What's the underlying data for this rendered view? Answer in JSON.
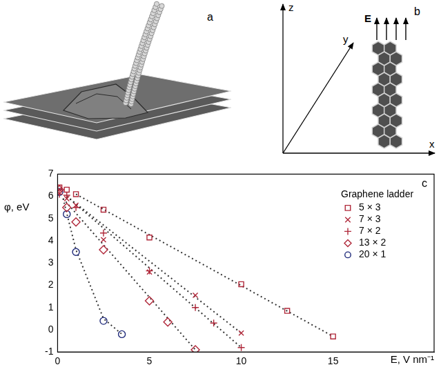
{
  "diagram_a": {
    "panel_label": "a"
  },
  "diagram_b": {
    "panel_label": "b",
    "axis_labels": [
      "x",
      "y",
      "z"
    ],
    "field_label": "E"
  },
  "chart_data": {
    "type": "scatter",
    "panel_label": "c",
    "x_label": "E, V nm⁻¹",
    "y_label": "φ, eV",
    "xlim": [
      0,
      20.5
    ],
    "xticks": [
      0,
      5,
      10,
      15
    ],
    "ylim": [
      -1,
      7
    ],
    "yticks": [
      -1,
      0,
      1,
      2,
      3,
      4,
      5,
      6,
      7
    ],
    "grid": false,
    "legend": "upper right",
    "legend_title": "Graphene ladder",
    "series": [
      {
        "name": "5 × 3",
        "color": "#b0283a",
        "marker": "square",
        "line_style": "dotted",
        "x": [
          0.1,
          0.5,
          1,
          2.5,
          5,
          10,
          12.5,
          15
        ],
        "values": [
          6.4,
          6.3,
          6.1,
          5.4,
          4.15,
          2.05,
          0.85,
          -0.3
        ],
        "fit": {
          "x": [
            1,
            15
          ],
          "values": [
            6.1,
            -0.3
          ]
        }
      },
      {
        "name": "7 × 3",
        "color": "#b0283a",
        "marker": "x",
        "line_style": "dotted",
        "x": [
          0.1,
          0.5,
          1,
          2.5,
          5,
          7.5,
          10
        ],
        "values": [
          6.3,
          5.9,
          5.6,
          4.05,
          2.6,
          1.55,
          -0.15
        ],
        "fit": {
          "x": [
            0.5,
            10
          ],
          "values": [
            6.0,
            -0.15
          ]
        }
      },
      {
        "name": "7 × 2",
        "color": "#b0283a",
        "marker": "plus",
        "line_style": "dotted",
        "x": [
          0.1,
          0.5,
          1,
          2.5,
          5,
          7.5,
          8.5,
          10
        ],
        "values": [
          6.1,
          6.05,
          5.5,
          4.35,
          2.65,
          1.0,
          0.3,
          -0.8
        ],
        "fit": {
          "x": [
            0.5,
            10
          ],
          "values": [
            6.0,
            -0.8
          ]
        }
      },
      {
        "name": "13 × 2",
        "color": "#b0283a",
        "marker": "diamond",
        "line_style": "dotted",
        "x": [
          0.1,
          0.5,
          1,
          2.5,
          5,
          6,
          7.5
        ],
        "values": [
          6.3,
          5.5,
          4.85,
          3.6,
          1.3,
          0.35,
          -0.9
        ],
        "fit": {
          "x": [
            0.3,
            7.5
          ],
          "values": [
            5.9,
            -0.9
          ]
        }
      },
      {
        "name": "20 × 1",
        "color": "#1f2a7a",
        "marker": "circle",
        "line_style": "dotted",
        "x": [
          0.1,
          0.5,
          1,
          2.5,
          3.5
        ],
        "values": [
          6.2,
          5.2,
          3.5,
          0.4,
          -0.2
        ],
        "fit": {
          "x": [
            0.3,
            1,
            2.5,
            3.5
          ],
          "values": [
            5.9,
            3.6,
            0.5,
            -0.2
          ]
        }
      }
    ]
  }
}
